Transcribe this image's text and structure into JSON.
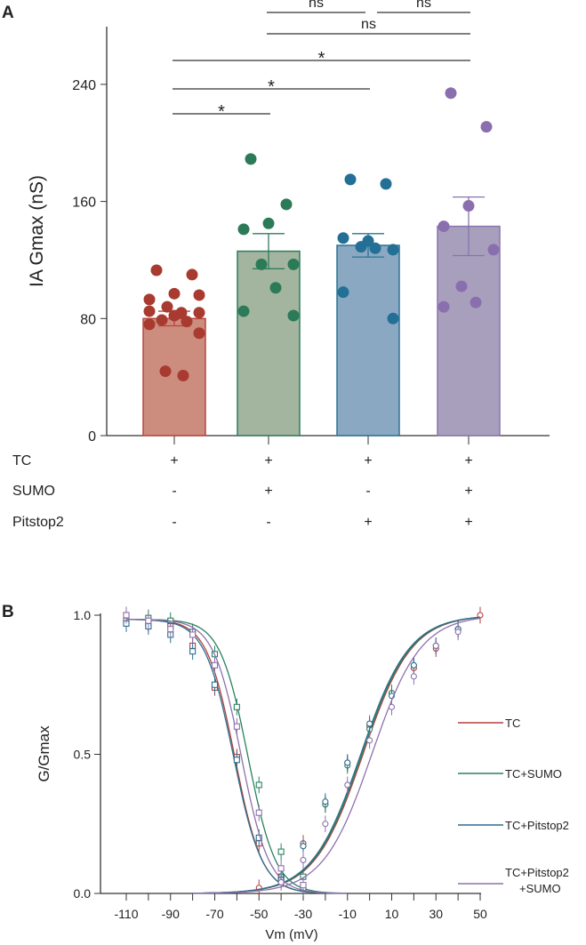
{
  "chart_data": [
    {
      "type": "bar",
      "panel_label": "A",
      "ylabel": "IA Gmax (nS)",
      "ylim": [
        0,
        280
      ],
      "yticks": [
        0,
        80,
        160,
        240
      ],
      "categories": [
        "TC",
        "TC+SUMO",
        "TC+Pitstop2",
        "TC+Pitstop2+SUMO"
      ],
      "colors": {
        "fill": [
          "#cc8c7e",
          "#a3b59e",
          "#8ba8c3",
          "#a89fbd"
        ],
        "stroke": [
          "#b8463f",
          "#2e7d5b",
          "#2a7294",
          "#8a73ad"
        ],
        "dot": [
          "#a83a30",
          "#2b7a58",
          "#236f96",
          "#8a6fae"
        ]
      },
      "means": [
        80,
        126,
        130,
        143
      ],
      "sem": [
        5,
        12,
        8,
        20
      ],
      "points": [
        [
          113,
          110,
          97,
          93,
          96,
          88,
          84,
          85,
          84,
          82,
          79,
          78,
          76,
          70,
          44,
          41
        ],
        [
          189,
          158,
          145,
          141,
          117,
          117,
          101,
          85,
          82
        ],
        [
          175,
          172,
          133,
          135,
          127,
          129,
          128,
          98,
          80
        ],
        [
          234,
          211,
          157,
          143,
          127,
          102,
          91,
          88
        ]
      ],
      "condition_rows": [
        {
          "label": "TC",
          "signs": [
            "+",
            "+",
            "+",
            "+"
          ]
        },
        {
          "label": "SUMO",
          "signs": [
            "-",
            "+",
            "-",
            "+"
          ]
        },
        {
          "label": "Pitstop2",
          "signs": [
            "-",
            "-",
            "+",
            "+"
          ]
        }
      ],
      "significance": [
        {
          "from": 0,
          "to": 1,
          "label": "*"
        },
        {
          "from": 0,
          "to": 2,
          "label": "*"
        },
        {
          "from": 0,
          "to": 3,
          "label": "*"
        },
        {
          "from": 1,
          "to": 3,
          "label": "ns"
        },
        {
          "from": 1,
          "to": 2,
          "label": "ns"
        },
        {
          "from": 2,
          "to": 3,
          "label": "ns"
        }
      ]
    },
    {
      "type": "line",
      "panel_label": "B",
      "xlabel": "Vm (mV)",
      "ylabel": "G/Gmax",
      "xlim": [
        -120,
        50
      ],
      "ylim": [
        0,
        1
      ],
      "xticks": [
        -110,
        -90,
        -70,
        -50,
        -30,
        -10,
        10,
        30,
        50
      ],
      "xtick_minor": [
        -100,
        -80,
        -60,
        -40,
        -20,
        0,
        20,
        40
      ],
      "yticks": [
        "0.0",
        "0.5",
        "1.0"
      ],
      "legend": "right",
      "series": [
        {
          "name": "TC",
          "color": "#b0413e",
          "inact": {
            "v50": -61,
            "k": 6.3
          },
          "act": {
            "v50": -3,
            "k": 11
          },
          "inact_points": [
            [
              -110,
              0.98
            ],
            [
              -100,
              0.97
            ],
            [
              -90,
              0.96
            ],
            [
              -80,
              0.89
            ],
            [
              -70,
              0.74
            ],
            [
              -60,
              0.49
            ],
            [
              -50,
              0.18
            ],
            [
              -40,
              0.06
            ],
            [
              -30,
              0.02
            ]
          ],
          "act_points": [
            [
              -50,
              0.02
            ],
            [
              -40,
              0.06
            ],
            [
              -30,
              0.18
            ],
            [
              -20,
              0.32
            ],
            [
              -10,
              0.47
            ],
            [
              0,
              0.6
            ],
            [
              10,
              0.72
            ],
            [
              20,
              0.81
            ],
            [
              30,
              0.88
            ],
            [
              40,
              0.95
            ],
            [
              50,
              1.0
            ]
          ]
        },
        {
          "name": "TC+SUMO",
          "color": "#2a8060",
          "inact": {
            "v50": -55,
            "k": 6.3
          },
          "act": {
            "v50": -3.5,
            "k": 11
          },
          "inact_points": [
            [
              -110,
              1.0
            ],
            [
              -100,
              0.99
            ],
            [
              -90,
              0.98
            ],
            [
              -80,
              0.94
            ],
            [
              -70,
              0.86
            ],
            [
              -60,
              0.67
            ],
            [
              -50,
              0.39
            ],
            [
              -40,
              0.15
            ],
            [
              -30,
              0.06
            ]
          ],
          "act_points": [
            [
              -40,
              0.06
            ],
            [
              -30,
              0.17
            ],
            [
              -20,
              0.32
            ],
            [
              -10,
              0.46
            ],
            [
              0,
              0.59
            ],
            [
              10,
              0.72
            ],
            [
              20,
              0.82
            ],
            [
              30,
              0.89
            ],
            [
              40,
              0.95
            ]
          ]
        },
        {
          "name": "TC+Pitstop2",
          "color": "#2a6f8f",
          "inact": {
            "v50": -61.5,
            "k": 6.5
          },
          "act": {
            "v50": -4,
            "k": 11
          },
          "inact_points": [
            [
              -110,
              0.97
            ],
            [
              -100,
              0.96
            ],
            [
              -90,
              0.93
            ],
            [
              -80,
              0.87
            ],
            [
              -70,
              0.75
            ],
            [
              -60,
              0.48
            ],
            [
              -50,
              0.2
            ],
            [
              -40,
              0.05
            ],
            [
              -30,
              0.02
            ]
          ],
          "act_points": [
            [
              -40,
              0.05
            ],
            [
              -30,
              0.17
            ],
            [
              -20,
              0.33
            ],
            [
              -10,
              0.47
            ],
            [
              0,
              0.61
            ],
            [
              10,
              0.71
            ],
            [
              20,
              0.82
            ],
            [
              30,
              0.89
            ],
            [
              40,
              0.95
            ]
          ]
        },
        {
          "name": "TC+Pitstop2\n+SUMO",
          "color": "#8d72ad",
          "inact": {
            "v50": -58,
            "k": 6.3
          },
          "act": {
            "v50": 1,
            "k": 11
          },
          "inact_points": [
            [
              -110,
              1.0
            ],
            [
              -100,
              0.98
            ],
            [
              -90,
              0.95
            ],
            [
              -80,
              0.93
            ],
            [
              -70,
              0.82
            ],
            [
              -60,
              0.6
            ],
            [
              -50,
              0.29
            ],
            [
              -40,
              0.09
            ],
            [
              -30,
              0.03
            ]
          ],
          "act_points": [
            [
              -40,
              0.04
            ],
            [
              -30,
              0.12
            ],
            [
              -20,
              0.25
            ],
            [
              -10,
              0.39
            ],
            [
              0,
              0.55
            ],
            [
              10,
              0.67
            ],
            [
              20,
              0.78
            ],
            [
              30,
              0.89
            ],
            [
              40,
              0.94
            ]
          ]
        }
      ]
    }
  ]
}
